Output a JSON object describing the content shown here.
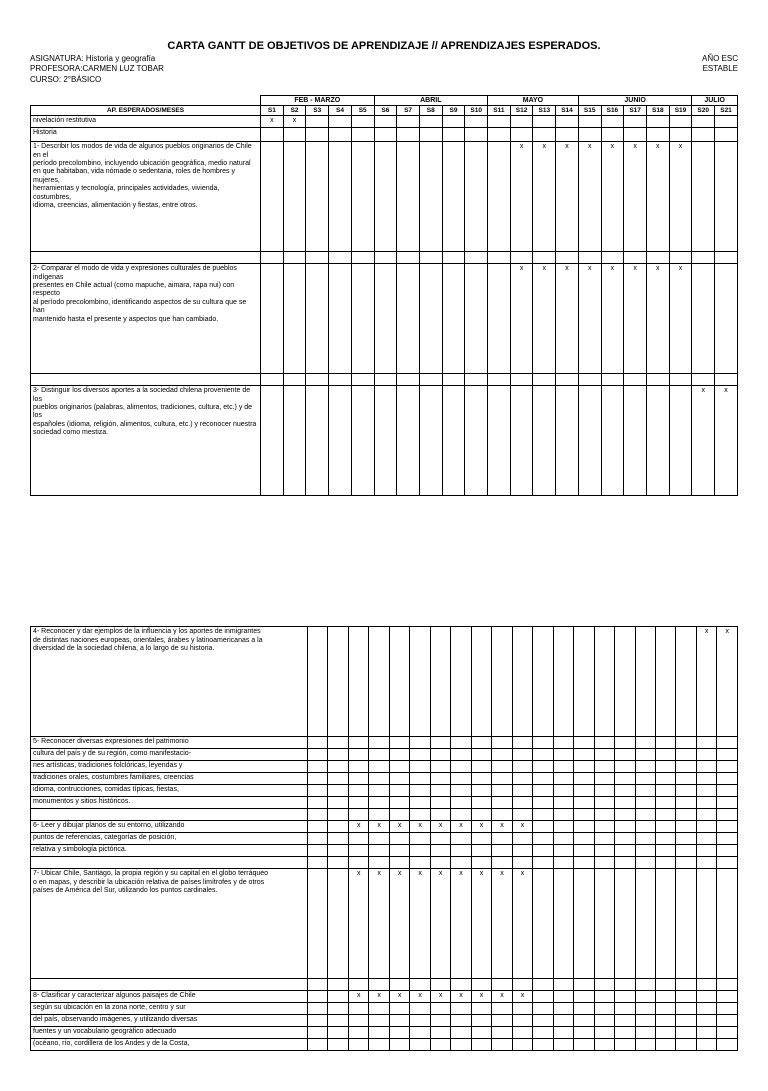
{
  "title": "CARTA GANTT DE OBJETIVOS DE APRENDIZAJE // APRENDIZAJES ESPERADOS.",
  "header": {
    "asignatura_label": "ASIGNATURA:",
    "asignatura": "Historia y geografía",
    "profesora_label": "PROFESORA:",
    "profesora": "CARMEN LUZ TOBAR",
    "curso_label": "CURSO:",
    "curso": "2°BÁSICO",
    "ano": "AÑO ESC",
    "estable": "ESTABLE"
  },
  "months": [
    "FEB - MARZO",
    "ABRIL",
    "MAYO",
    "JUNIO",
    "JULIO"
  ],
  "month_spans": [
    5,
    5,
    4,
    5,
    2
  ],
  "weeks": [
    "S1",
    "S2",
    "S3",
    "S4",
    "S5",
    "S6",
    "S7",
    "S8",
    "S9",
    "S10",
    "S11",
    "S12",
    "S13",
    "S14",
    "S15",
    "S16",
    "S17",
    "S18",
    "S19",
    "S20",
    "S21"
  ],
  "col_header": "AP. ESPERADOS/MESES",
  "rows_top": [
    {
      "label": "nivelación restitutiva",
      "marks": [
        0,
        1
      ],
      "h": "short"
    },
    {
      "label": "Historia",
      "marks": [],
      "h": "med"
    },
    {
      "label": "1- Describir los modos de vida de algunos pueblos originarios de Chile en el\nperíodo precolombino, incluyendo ubicación geográfica, medio natural\nen que habitaban, vida nómade o sedentaria, roles de hombres y mujeres,\nherramientas y tecnología, principales actividades, vivienda, costumbres,\nidioma, creencias, alimentación y fiestas, entre otros.",
      "marks": [
        11,
        12,
        13,
        14,
        15,
        16,
        17,
        18
      ],
      "h": "tall"
    },
    {
      "label": "",
      "marks": [],
      "h": "short"
    },
    {
      "label": "2- Comparar el modo de vida y expresiones culturales de pueblos indígenas\npresentes en Chile actual (como mapuche, aimara, rapa nui) con respecto\nal período precolombino, identificando aspectos de su cultura que se han\nmantenido hasta el presente y aspectos que han cambiado.",
      "marks": [
        11,
        12,
        13,
        14,
        15,
        16,
        17,
        18
      ],
      "h": "tall"
    },
    {
      "label": "",
      "marks": [],
      "h": "short"
    },
    {
      "label": "3- Distinguir los diversos aportes a la sociedad chilena proveniente de los\npueblos originarios (palabras, alimentos, tradiciones, cultura, etc.) y de los\nespañoles (idioma, religión, alimentos, cultura, etc.) y reconocer nuestra\nsociedad como mestiza.",
      "marks": [
        19,
        20
      ],
      "h": "tall"
    }
  ],
  "rows_bottom": [
    {
      "label": "4- Reconocer y dar ejemplos de la influencia y los aportes de inmigrantes\nde distintas naciones europeas, orientales, árabes y latinoamericanas a la\ndiversidad de la sociedad chilena, a lo largo de su historia.",
      "marks": [
        19,
        20
      ],
      "h": "tall"
    },
    {
      "label": "5- Reconocer diversas expresiones del patrimonio",
      "marks": [],
      "h": "short"
    },
    {
      "label": "cultura del país y de su región, como manifestacio-",
      "marks": [],
      "h": "short"
    },
    {
      "label": "nes artísticas, tradiciones folclóricas, leyendas y",
      "marks": [],
      "h": "short"
    },
    {
      "label": "tradiciones orales, costumbres familiares, creencias",
      "marks": [],
      "h": "short"
    },
    {
      "label": "idioma, contrucciones, comidas típicas, fiestas,",
      "marks": [],
      "h": "short"
    },
    {
      "label": "monumentos y sitios históricos.",
      "marks": [],
      "h": "short"
    },
    {
      "label": "",
      "marks": [],
      "h": "short"
    },
    {
      "label": "6- Leer y dibujar planos de su entorno, utilizando",
      "marks": [
        2,
        3,
        4,
        5,
        6,
        7,
        8,
        9,
        10
      ],
      "h": "short"
    },
    {
      "label": "puntos de referencias, categorías de posición,",
      "marks": [],
      "h": "short"
    },
    {
      "label": "relativa y simbología pictórica.",
      "marks": [],
      "h": "short"
    },
    {
      "label": "",
      "marks": [],
      "h": "short"
    },
    {
      "label": "7- Ubicar Chile, Santiago, la propia región y su capital en el globo terráqueo\no en mapas, y describir la ubicación relativa de países limítrofes y de otros\npaíses de América del Sur, utilizando los puntos cardinales.",
      "marks": [
        2,
        3,
        4,
        5,
        6,
        7,
        8,
        9,
        10
      ],
      "h": "tall"
    },
    {
      "label": "",
      "marks": [],
      "h": "short"
    },
    {
      "label": "8- Clasificar y caracterizar algunos paisajes de Chile",
      "marks": [
        2,
        3,
        4,
        5,
        6,
        7,
        8,
        9,
        10
      ],
      "h": "short"
    },
    {
      "label": "según su ubicación en la zona norte, centro y sur",
      "marks": [],
      "h": "short"
    },
    {
      "label": "del país, observando imágenes, y utilizando diversas",
      "marks": [],
      "h": "short"
    },
    {
      "label": "fuentes y un vocabulario geográfico adecuado",
      "marks": [],
      "h": "short"
    },
    {
      "label": "(océano, río, cordillera de los Andes y de la Costa,",
      "marks": [],
      "h": "short"
    }
  ],
  "style": {
    "border_color": "#000000",
    "background": "#ffffff",
    "text_color": "#000000",
    "mark_char": "x"
  }
}
